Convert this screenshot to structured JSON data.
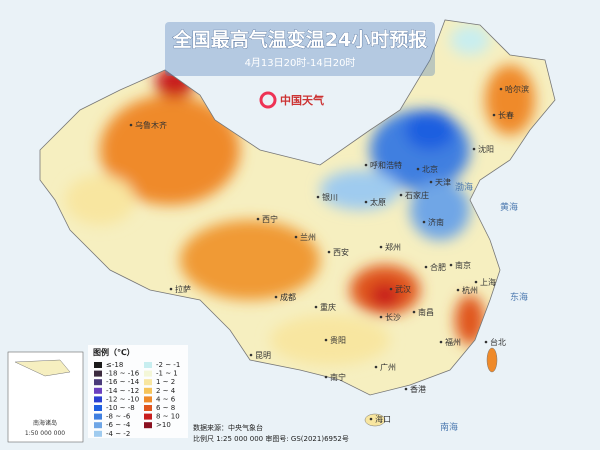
{
  "header": {
    "title": "全国最高气温变温24小时预报",
    "subtitle": "4月13日20时-14日20时",
    "logo": "中国天气"
  },
  "legend": {
    "title": "图例（℃）",
    "items": [
      {
        "label": "≤-18",
        "color": "#1a1a1a"
      },
      {
        "label": "-18 ~ -16",
        "color": "#3b2a3e"
      },
      {
        "label": "-16 ~ -14",
        "color": "#4a3a7a"
      },
      {
        "label": "-14 ~ -12",
        "color": "#6a3fbf"
      },
      {
        "label": "-12 ~ -10",
        "color": "#2a3fd0"
      },
      {
        "label": "-10 ~ -8",
        "color": "#1f5fe0"
      },
      {
        "label": "-8 ~ -6",
        "color": "#3f7fe0"
      },
      {
        "label": "-6 ~ -4",
        "color": "#6fa6e6"
      },
      {
        "label": "-4 ~ -2",
        "color": "#9fcbef"
      },
      {
        "label": "-2 ~ -1",
        "color": "#c8eef0"
      },
      {
        "label": "-1 ~ 1",
        "color": "#f4f7d8"
      },
      {
        "label": "1 ~ 2",
        "color": "#f8e6a0"
      },
      {
        "label": "2 ~ 4",
        "color": "#f6c45a"
      },
      {
        "label": "4 ~ 6",
        "color": "#ef8a2a"
      },
      {
        "label": "6 ~ 8",
        "color": "#e0561e"
      },
      {
        "label": "8 ~ 10",
        "color": "#c81e1e"
      },
      {
        "label": ">10",
        "color": "#8a1020"
      }
    ]
  },
  "cities": [
    "乌鲁木齐",
    "拉萨",
    "西宁",
    "兰州",
    "银川",
    "呼和浩特",
    "北京",
    "天津",
    "石家庄",
    "太原",
    "济南",
    "郑州",
    "西安",
    "成都",
    "重庆",
    "武汉",
    "长沙",
    "贵阳",
    "昆明",
    "南宁",
    "广州",
    "香港",
    "海口",
    "福州",
    "台北",
    "南昌",
    "合肥",
    "南京",
    "上海",
    "杭州",
    "沈阳",
    "长春",
    "哈尔滨"
  ],
  "seas": [
    "渤海",
    "黄海",
    "东海",
    "南海"
  ],
  "inset": {
    "label": "南海诸岛",
    "scale": "1:50 000 000"
  },
  "footer": {
    "source": "数据来源：中央气象台",
    "scale": "比例尺 1:25 000 000  审图号: GS(2021)6952号"
  }
}
